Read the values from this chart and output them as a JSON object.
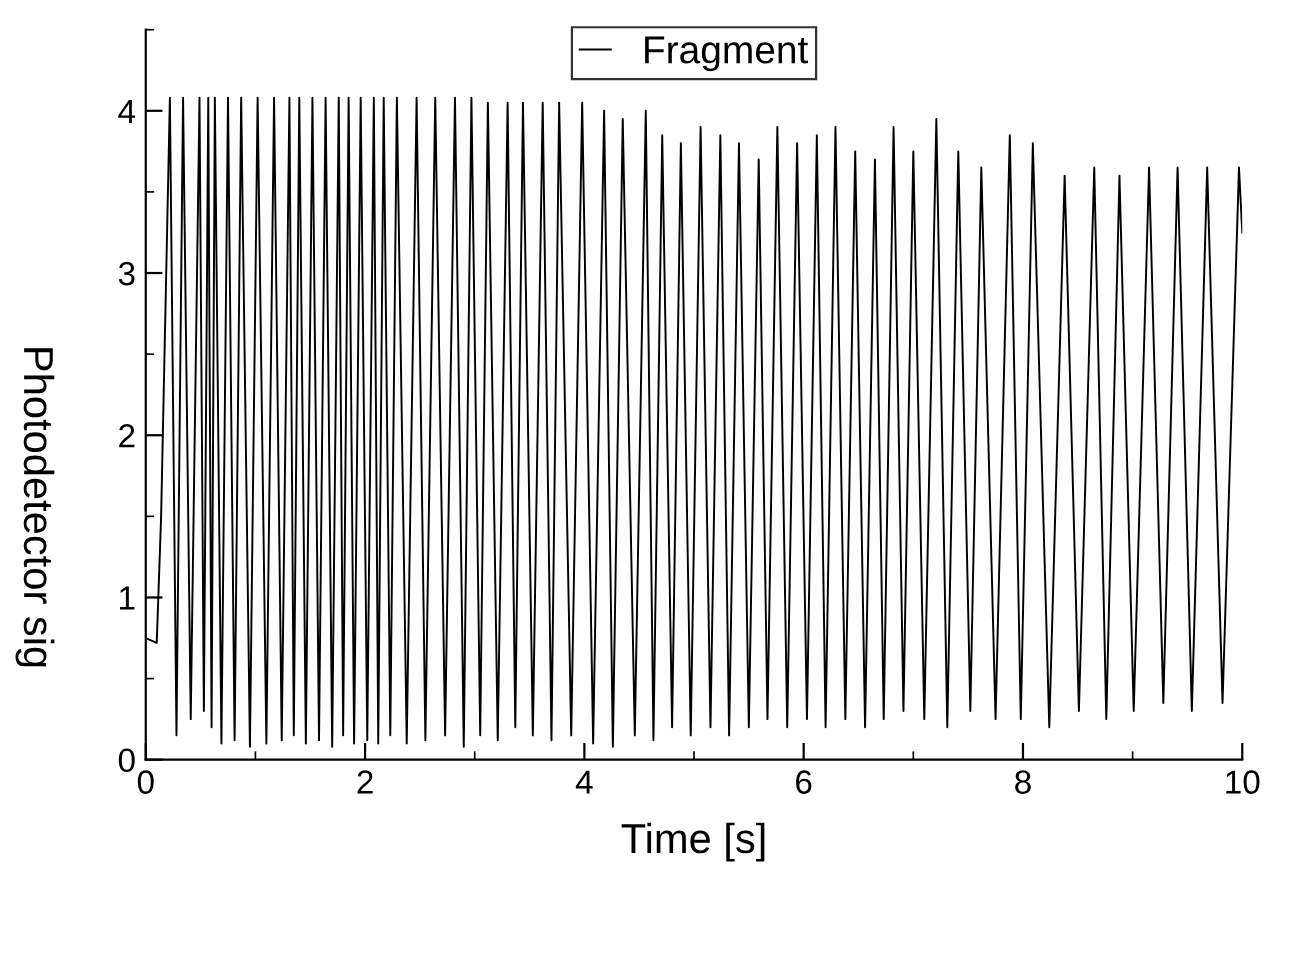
{
  "chart_data": {
    "type": "line",
    "xlabel": "Time [s]",
    "ylabel": "Photodetector sig",
    "xlim": [
      0,
      10
    ],
    "ylim": [
      0,
      4.5
    ],
    "xticks": [
      0,
      2,
      4,
      6,
      8,
      10
    ],
    "yticks": [
      0,
      1,
      2,
      3,
      4
    ],
    "grid": false,
    "legend": "top",
    "marker": "none",
    "line_style": "solid",
    "series": [
      {
        "name": "Fragment",
        "color": "#000000",
        "x": [
          0.0,
          0.1,
          0.14,
          0.22,
          0.28,
          0.34,
          0.41,
          0.49,
          0.53,
          0.57,
          0.6,
          0.63,
          0.69,
          0.75,
          0.81,
          0.87,
          0.95,
          1.02,
          1.1,
          1.17,
          1.24,
          1.31,
          1.35,
          1.4,
          1.46,
          1.52,
          1.58,
          1.64,
          1.7,
          1.76,
          1.8,
          1.85,
          1.9,
          1.96,
          2.02,
          2.08,
          2.12,
          2.17,
          2.23,
          2.29,
          2.38,
          2.47,
          2.55,
          2.64,
          2.73,
          2.82,
          2.9,
          2.97,
          3.05,
          3.12,
          3.21,
          3.3,
          3.37,
          3.44,
          3.53,
          3.62,
          3.7,
          3.77,
          3.88,
          3.98,
          4.08,
          4.18,
          4.26,
          4.35,
          4.46,
          4.56,
          4.63,
          4.71,
          4.8,
          4.88,
          4.97,
          5.06,
          5.15,
          5.24,
          5.32,
          5.41,
          5.5,
          5.59,
          5.67,
          5.76,
          5.85,
          5.94,
          6.03,
          6.12,
          6.2,
          6.29,
          6.38,
          6.47,
          6.56,
          6.65,
          6.73,
          6.82,
          6.91,
          7.0,
          7.1,
          7.21,
          7.31,
          7.41,
          7.52,
          7.62,
          7.75,
          7.88,
          7.98,
          8.09,
          8.24,
          8.38,
          8.51,
          8.65,
          8.76,
          8.88,
          9.01,
          9.15,
          9.28,
          9.41,
          9.54,
          9.68,
          9.82,
          9.97,
          10.0
        ],
        "values": [
          0.75,
          0.72,
          1.5,
          4.08,
          0.15,
          4.08,
          0.25,
          4.08,
          0.3,
          4.08,
          0.2,
          4.08,
          0.1,
          4.08,
          0.12,
          4.08,
          0.08,
          4.08,
          0.1,
          4.08,
          0.12,
          4.08,
          0.15,
          4.08,
          0.1,
          4.08,
          0.12,
          4.08,
          0.08,
          4.08,
          0.15,
          4.08,
          0.1,
          4.08,
          0.12,
          4.08,
          0.1,
          4.08,
          0.15,
          4.08,
          0.1,
          4.08,
          0.12,
          4.08,
          0.15,
          4.08,
          0.08,
          4.08,
          0.15,
          4.05,
          0.12,
          4.05,
          0.2,
          4.05,
          0.15,
          4.05,
          0.12,
          4.05,
          0.15,
          4.05,
          0.1,
          4.0,
          0.08,
          3.95,
          0.15,
          4.0,
          0.12,
          3.85,
          0.2,
          3.8,
          0.15,
          3.9,
          0.2,
          3.85,
          0.15,
          3.8,
          0.2,
          3.7,
          0.25,
          3.9,
          0.2,
          3.8,
          0.25,
          3.85,
          0.2,
          3.9,
          0.25,
          3.75,
          0.2,
          3.7,
          0.25,
          3.9,
          0.3,
          3.75,
          0.25,
          3.95,
          0.2,
          3.75,
          0.3,
          3.65,
          0.25,
          3.85,
          0.25,
          3.8,
          0.2,
          3.6,
          0.3,
          3.65,
          0.25,
          3.6,
          0.3,
          3.65,
          0.35,
          3.65,
          0.3,
          3.65,
          0.35,
          3.65,
          3.25
        ]
      }
    ]
  }
}
